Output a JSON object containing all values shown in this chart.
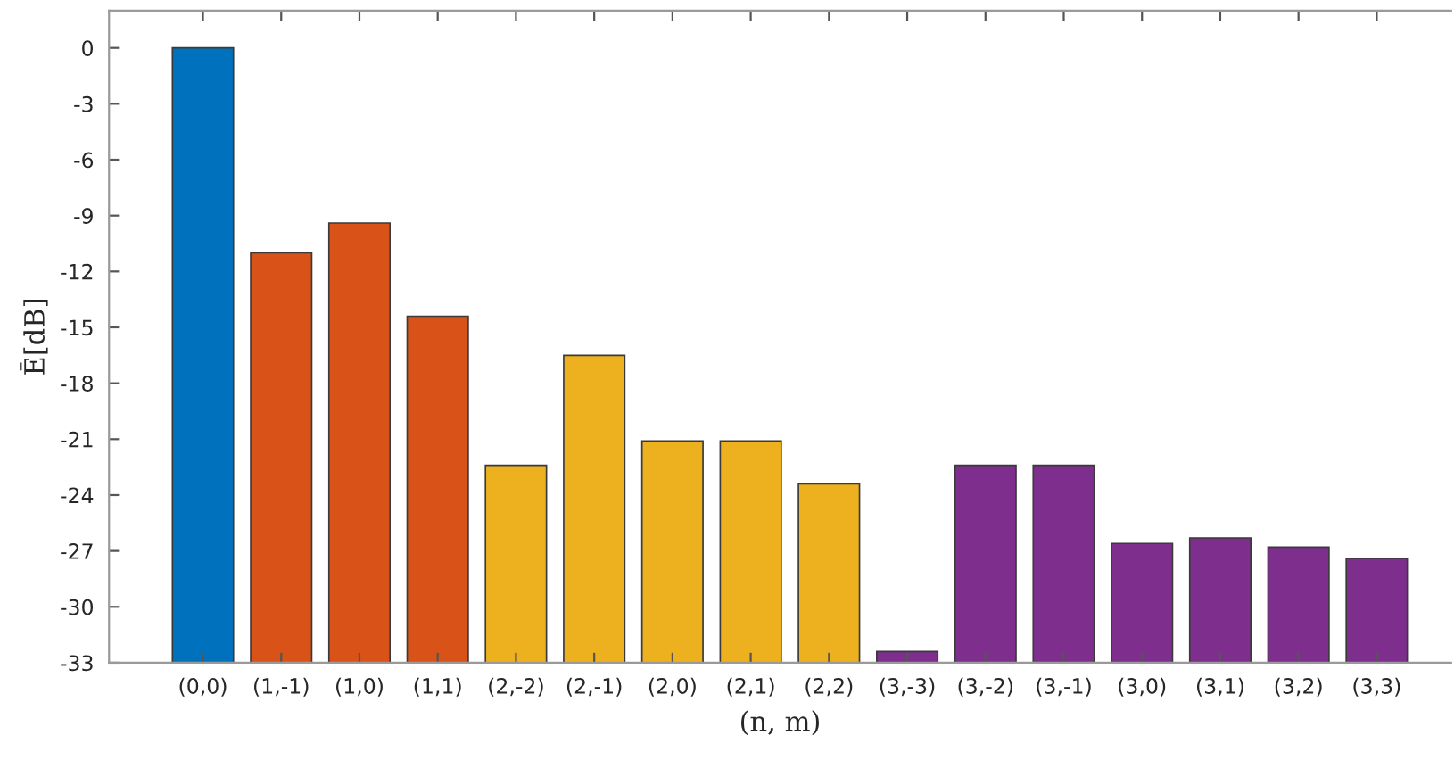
{
  "chart_data": {
    "type": "bar",
    "xlabel": "(n, m)",
    "ylabel": "Ē[dB]",
    "categories": [
      "(0,0)",
      "(1,-1)",
      "(1,0)",
      "(1,1)",
      "(2,-2)",
      "(2,-1)",
      "(2,0)",
      "(2,1)",
      "(2,2)",
      "(3,-3)",
      "(3,-2)",
      "(3,-1)",
      "(3,0)",
      "(3,1)",
      "(3,2)",
      "(3,3)"
    ],
    "base": [
      -33,
      -33,
      -33,
      -33,
      -33,
      -33,
      -33,
      -33,
      -33,
      -33,
      -33,
      -33,
      -33,
      -33,
      -33,
      -33
    ],
    "values": [
      33,
      22.0,
      23.6,
      18.6,
      10.6,
      16.5,
      11.9,
      11.9,
      9.6,
      0.6,
      10.6,
      10.6,
      6.4,
      6.7,
      6.2,
      5.6
    ],
    "colors": [
      "#0072bd",
      "#d95319",
      "#d95319",
      "#d95319",
      "#edb120",
      "#edb120",
      "#edb120",
      "#edb120",
      "#edb120",
      "#7e2f8e",
      "#7e2f8e",
      "#7e2f8e",
      "#7e2f8e",
      "#7e2f8e",
      "#7e2f8e",
      "#7e2f8e"
    ],
    "ylim": [
      -33,
      2
    ],
    "yticks": [
      0,
      -3,
      -6,
      -9,
      -12,
      -15,
      -18,
      -21,
      -24,
      -27,
      -30,
      -33
    ],
    "grid": false,
    "legend": false
  }
}
